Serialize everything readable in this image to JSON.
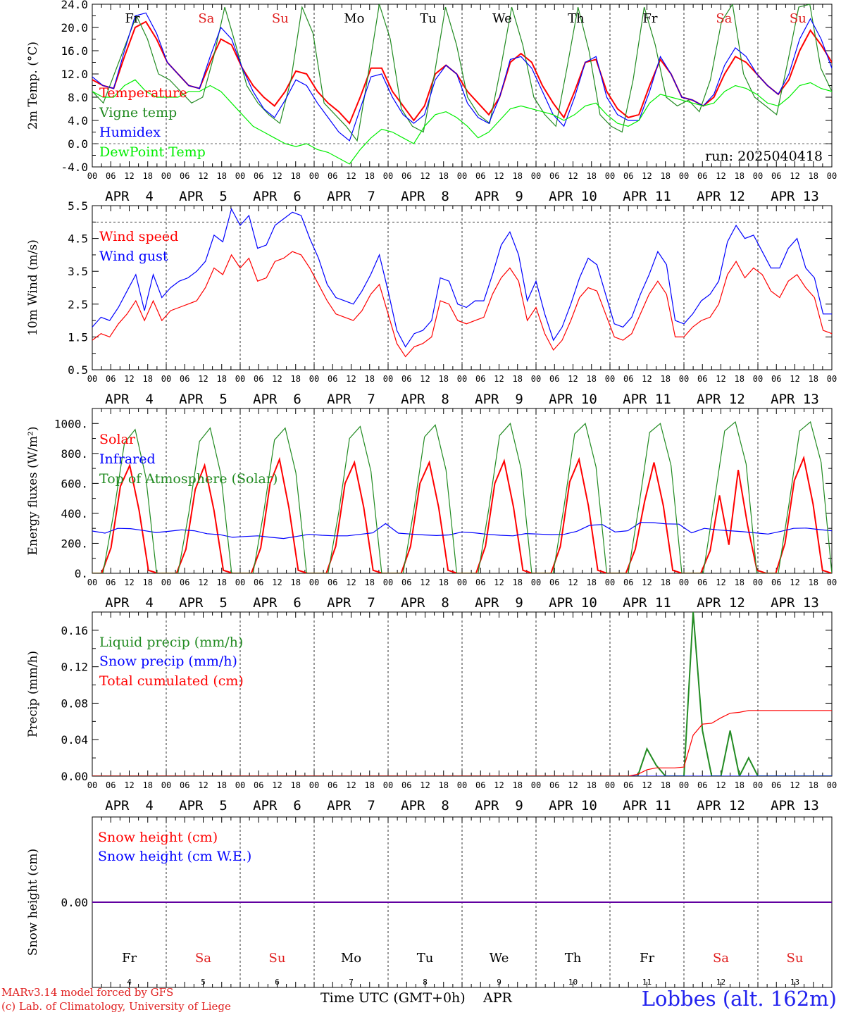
{
  "footer": {
    "model_line": "MARv3.14 model forced by GFS",
    "lab_line": "(c) Lab. of Climatology, University of Liege",
    "xlabel": "Time UTC (GMT+0h)",
    "month": "APR",
    "station": "Lobbes (alt. 162m)"
  },
  "timeline": {
    "hour_ticks": [
      "00",
      "06",
      "12",
      "18"
    ],
    "final_tick": "00",
    "date_labels": [
      "APR  4",
      "APR  5",
      "APR  6",
      "APR  7",
      "APR  8",
      "APR  9",
      "APR 10",
      "APR 11",
      "APR 12",
      "APR 13"
    ],
    "day_numbers": [
      "4",
      "5",
      "6",
      "7",
      "8",
      "9",
      "10",
      "11",
      "12",
      "13"
    ],
    "weekdays": [
      "Fr",
      "Sa",
      "Su",
      "Mo",
      "Tu",
      "We",
      "Th",
      "Fr",
      "Sa",
      "Su"
    ],
    "weekend_color": "#e02020",
    "weekday_color": "#000000"
  },
  "chart_data": [
    {
      "type": "line",
      "ylabel": "2m Temp. (°C)",
      "ylim": [
        -4,
        24
      ],
      "yticks": [
        "-4.0",
        "0.0",
        "4.0",
        "8.0",
        "12.0",
        "16.0",
        "20.0",
        "24.0"
      ],
      "ref_line": 0,
      "annotation": "run: 2025040418",
      "x_hours_step": 6,
      "series": [
        {
          "name": "Temperature",
          "color": "#ff0000",
          "values": [
            11,
            10,
            9.5,
            15,
            20,
            21,
            18,
            14,
            12,
            10,
            9.5,
            14,
            18,
            17,
            13,
            10,
            8,
            6.5,
            9,
            12.5,
            12,
            9,
            7,
            5.5,
            3.5,
            8,
            13,
            13,
            9,
            6.5,
            4,
            6.5,
            12,
            13.5,
            12,
            9,
            7,
            5,
            8,
            14,
            15.5,
            14,
            10,
            7,
            4.5,
            9,
            14,
            14.5,
            9,
            6,
            4.5,
            5,
            10,
            14.5,
            12,
            8,
            7.5,
            6.5,
            8,
            12,
            15,
            14,
            12,
            10,
            8.5,
            11,
            16,
            19.5,
            17,
            14
          ]
        },
        {
          "name": "Vigne temp",
          "color": "#228b22",
          "values": [
            9,
            7,
            12,
            17,
            22,
            18,
            12,
            11,
            9,
            7,
            8,
            15,
            23.5,
            17,
            10,
            7,
            5,
            3.5,
            11,
            23.5,
            19,
            7,
            5,
            3,
            0.5,
            12,
            24,
            18,
            6,
            3,
            2,
            12,
            23.5,
            17,
            8,
            5,
            3.5,
            13,
            23.5,
            17,
            8,
            5,
            3,
            13,
            23.5,
            16,
            5,
            3,
            2,
            11,
            23.5,
            17,
            8,
            6.5,
            7.5,
            5.5,
            11,
            21,
            24,
            12,
            8,
            6.5,
            5,
            14,
            23.5,
            24,
            13,
            9
          ]
        },
        {
          "name": "Humidex",
          "color": "#0000ff",
          "values": [
            11.5,
            10,
            9.5,
            16,
            22,
            22.5,
            19,
            14,
            12,
            10,
            9.5,
            15,
            20,
            18,
            13,
            9,
            6,
            4.5,
            7.5,
            11,
            10,
            7,
            4.5,
            2,
            0.5,
            6,
            11.5,
            12,
            8,
            5,
            3.5,
            5,
            11,
            13.5,
            12,
            7,
            4.5,
            3.5,
            8,
            14.5,
            15,
            13,
            9,
            5,
            3,
            8,
            14,
            15,
            8,
            5,
            4,
            4,
            9,
            15,
            12,
            8,
            7.5,
            6.5,
            8.5,
            13.5,
            16.5,
            15,
            12,
            10,
            8.5,
            12,
            18,
            21.5,
            18,
            13
          ]
        },
        {
          "name": "DewPoint Temp",
          "color": "#00ee00",
          "values": [
            9,
            8,
            8,
            10,
            11,
            9,
            8,
            8,
            8,
            9,
            9,
            10,
            9,
            7,
            5,
            3,
            2,
            1,
            0,
            -0.5,
            0,
            -1,
            -1.5,
            -2.5,
            -3.5,
            -1,
            1,
            2.5,
            2,
            1,
            0,
            3,
            5,
            5.5,
            4.5,
            3,
            1,
            2,
            4,
            6,
            6.5,
            6,
            5.5,
            5,
            4,
            5,
            6.5,
            7,
            5,
            3.5,
            3,
            4,
            7,
            8.5,
            8,
            7.5,
            7,
            6.5,
            7,
            9,
            10,
            9.5,
            8.5,
            7,
            6.5,
            8,
            10,
            10.5,
            9.5,
            9
          ]
        }
      ]
    },
    {
      "type": "line",
      "ylabel": "10m Wind (m/s)",
      "ylim": [
        0.5,
        5.5
      ],
      "yticks": [
        "0.5",
        "1.5",
        "2.5",
        "3.5",
        "4.5",
        "5.5"
      ],
      "ref_line": 5,
      "x_hours_step": 3,
      "series": [
        {
          "name": "Wind speed",
          "color": "#ff0000",
          "values": [
            1.4,
            1.6,
            1.5,
            1.9,
            2.2,
            2.6,
            2.0,
            2.6,
            2.0,
            2.3,
            2.4,
            2.5,
            2.6,
            3.0,
            3.6,
            3.4,
            4.0,
            3.6,
            3.9,
            3.2,
            3.3,
            3.8,
            3.9,
            4.1,
            4.0,
            3.6,
            3.1,
            2.6,
            2.2,
            2.1,
            2.0,
            2.3,
            2.8,
            3.1,
            2.2,
            1.3,
            0.9,
            1.2,
            1.3,
            1.5,
            2.6,
            2.5,
            2.0,
            1.9,
            2.0,
            2.1,
            2.8,
            3.3,
            3.6,
            3.2,
            2.0,
            2.4,
            1.6,
            1.1,
            1.4,
            2.0,
            2.7,
            3.0,
            2.9,
            2.2,
            1.5,
            1.4,
            1.6,
            2.2,
            2.8,
            3.2,
            2.8,
            1.5,
            1.5,
            1.8,
            2.0,
            2.1,
            2.5,
            3.4,
            3.8,
            3.3,
            3.6,
            3.4,
            2.9,
            2.7,
            3.2,
            3.4,
            3.0,
            2.7,
            1.7,
            1.6
          ]
        },
        {
          "name": "Wind gust",
          "color": "#0000ff",
          "values": [
            1.8,
            2.1,
            2.0,
            2.4,
            2.9,
            3.4,
            2.3,
            3.4,
            2.7,
            3.0,
            3.2,
            3.3,
            3.5,
            3.8,
            4.6,
            4.4,
            5.4,
            4.9,
            5.2,
            4.2,
            4.3,
            4.9,
            5.1,
            5.3,
            5.2,
            4.5,
            3.9,
            3.1,
            2.7,
            2.6,
            2.5,
            2.9,
            3.4,
            4.0,
            2.9,
            1.7,
            1.2,
            1.6,
            1.7,
            2.0,
            3.3,
            3.2,
            2.5,
            2.4,
            2.6,
            2.6,
            3.4,
            4.3,
            4.7,
            4.0,
            2.6,
            3.2,
            2.2,
            1.4,
            1.8,
            2.5,
            3.3,
            3.9,
            3.7,
            2.8,
            1.9,
            1.8,
            2.1,
            2.8,
            3.4,
            4.1,
            3.7,
            2.0,
            1.9,
            2.2,
            2.6,
            2.8,
            3.2,
            4.4,
            4.9,
            4.5,
            4.6,
            4.1,
            3.6,
            3.6,
            4.2,
            4.5,
            3.6,
            3.3,
            2.2,
            2.2
          ]
        }
      ]
    },
    {
      "type": "line",
      "ylabel": "Energy fluxes (W/m²)",
      "ylim": [
        0,
        1100
      ],
      "yticks": [
        "0.",
        "200.",
        "400.",
        "600.",
        "800.",
        "1000."
      ],
      "x_hours_step": 3,
      "series": [
        {
          "name": "Solar",
          "color": "#ff0000",
          "values": [
            0,
            0,
            170,
            580,
            720,
            420,
            20,
            0,
            0,
            0,
            160,
            560,
            720,
            420,
            20,
            0,
            0,
            0,
            170,
            600,
            760,
            440,
            20,
            0,
            0,
            0,
            180,
            600,
            740,
            440,
            20,
            0,
            0,
            0,
            180,
            600,
            740,
            440,
            20,
            0,
            0,
            0,
            180,
            600,
            750,
            440,
            20,
            0,
            0,
            0,
            180,
            610,
            760,
            450,
            20,
            0,
            0,
            0,
            160,
            480,
            740,
            450,
            20,
            0,
            0,
            0,
            150,
            520,
            190,
            690,
            320,
            20,
            0,
            0,
            200,
            620,
            770,
            460,
            20,
            0
          ]
        },
        {
          "name": "Infrared",
          "color": "#0000ff",
          "values": [
            282,
            268,
            300,
            298,
            286,
            272,
            280,
            290,
            284,
            264,
            258,
            240,
            246,
            250,
            240,
            232,
            246,
            260,
            254,
            250,
            250,
            260,
            270,
            332,
            268,
            262,
            256,
            252,
            256,
            276,
            270,
            260,
            254,
            250,
            265,
            262,
            258,
            260,
            280,
            320,
            326,
            276,
            284,
            340,
            338,
            330,
            328,
            270,
            300,
            290,
            284,
            278,
            270,
            262,
            280,
            300,
            302,
            292,
            284
          ]
        },
        {
          "name": "Top of Atmosphere (Solar)",
          "color": "#228b22",
          "values": [
            0,
            0,
            400,
            870,
            960,
            640,
            0,
            0,
            0,
            400,
            880,
            970,
            660,
            0,
            0,
            0,
            410,
            890,
            970,
            670,
            0,
            0,
            0,
            410,
            900,
            980,
            680,
            0,
            0,
            0,
            420,
            910,
            990,
            690,
            0,
            0,
            0,
            430,
            920,
            1000,
            700,
            0,
            0,
            0,
            440,
            930,
            1000,
            710,
            0,
            0,
            0,
            450,
            940,
            1000,
            720,
            0,
            0,
            0,
            460,
            950,
            1010,
            730,
            0,
            0,
            0,
            460,
            950,
            1010,
            740,
            0
          ]
        }
      ]
    },
    {
      "type": "line",
      "ylabel": "Precip (mm/h)",
      "ylim": [
        0,
        0.18
      ],
      "yticks": [
        "0.00",
        "0.04",
        "0.08",
        "0.12",
        "0.16"
      ],
      "x_hours_step": 3,
      "series": [
        {
          "name": "Liquid precip (mm/h)",
          "color": "#228b22",
          "values": [
            0,
            0,
            0,
            0,
            0,
            0,
            0,
            0,
            0,
            0,
            0,
            0,
            0,
            0,
            0,
            0,
            0,
            0,
            0,
            0,
            0,
            0,
            0,
            0,
            0,
            0,
            0,
            0,
            0,
            0,
            0,
            0,
            0,
            0,
            0,
            0,
            0,
            0,
            0,
            0,
            0,
            0,
            0,
            0,
            0,
            0,
            0,
            0,
            0,
            0,
            0,
            0,
            0,
            0,
            0,
            0,
            0,
            0,
            0,
            0,
            0.03,
            0.012,
            0,
            0,
            0,
            0.18,
            0.05,
            0,
            0,
            0.05,
            0,
            0.02,
            0,
            0,
            0,
            0,
            0,
            0,
            0,
            0,
            0
          ]
        },
        {
          "name": "Snow precip (mm/h)",
          "color": "#0000ff",
          "values": [
            0,
            0,
            0,
            0,
            0,
            0,
            0,
            0,
            0,
            0,
            0,
            0,
            0,
            0,
            0,
            0,
            0,
            0,
            0,
            0,
            0,
            0,
            0,
            0,
            0,
            0,
            0,
            0,
            0,
            0,
            0,
            0,
            0,
            0,
            0,
            0,
            0,
            0,
            0,
            0,
            0,
            0,
            0,
            0,
            0,
            0,
            0,
            0,
            0,
            0,
            0,
            0,
            0,
            0,
            0,
            0,
            0,
            0,
            0,
            0,
            0,
            0,
            0,
            0,
            0,
            0,
            0,
            0,
            0,
            0,
            0,
            0,
            0,
            0,
            0,
            0,
            0,
            0,
            0,
            0,
            0
          ]
        },
        {
          "name": "Total cumulated (cm)",
          "color": "#ff0000",
          "values": [
            0,
            0,
            0,
            0,
            0,
            0,
            0,
            0,
            0,
            0,
            0,
            0,
            0,
            0,
            0,
            0,
            0,
            0,
            0,
            0,
            0,
            0,
            0,
            0,
            0,
            0,
            0,
            0,
            0,
            0,
            0,
            0,
            0,
            0,
            0,
            0,
            0,
            0,
            0,
            0,
            0,
            0,
            0,
            0,
            0,
            0,
            0,
            0,
            0,
            0,
            0,
            0,
            0,
            0,
            0,
            0,
            0,
            0,
            0,
            0.002,
            0.007,
            0.009,
            0.009,
            0.009,
            0.01,
            0.045,
            0.057,
            0.058,
            0.064,
            0.069,
            0.07,
            0.072,
            0.072,
            0.072,
            0.072,
            0.072,
            0.072,
            0.072,
            0.072,
            0.072,
            0.072
          ]
        }
      ]
    },
    {
      "type": "line",
      "ylabel": "Snow height (cm)",
      "ylim": [
        -1,
        1
      ],
      "yticks": [
        "0.00"
      ],
      "x_hours_step": 6,
      "series": [
        {
          "name": "Snow height (cm)",
          "color": "#ff0000",
          "values": [
            0,
            0,
            0,
            0,
            0,
            0,
            0,
            0,
            0,
            0,
            0,
            0,
            0,
            0,
            0,
            0,
            0,
            0,
            0,
            0,
            0,
            0,
            0,
            0,
            0,
            0,
            0,
            0,
            0,
            0,
            0,
            0,
            0,
            0,
            0,
            0,
            0,
            0,
            0,
            0,
            0
          ]
        },
        {
          "name": "Snow height (cm W.E.)",
          "color": "#0000ff",
          "values": [
            0,
            0,
            0,
            0,
            0,
            0,
            0,
            0,
            0,
            0,
            0,
            0,
            0,
            0,
            0,
            0,
            0,
            0,
            0,
            0,
            0,
            0,
            0,
            0,
            0,
            0,
            0,
            0,
            0,
            0,
            0,
            0,
            0,
            0,
            0,
            0,
            0,
            0,
            0,
            0,
            0
          ]
        }
      ]
    }
  ]
}
